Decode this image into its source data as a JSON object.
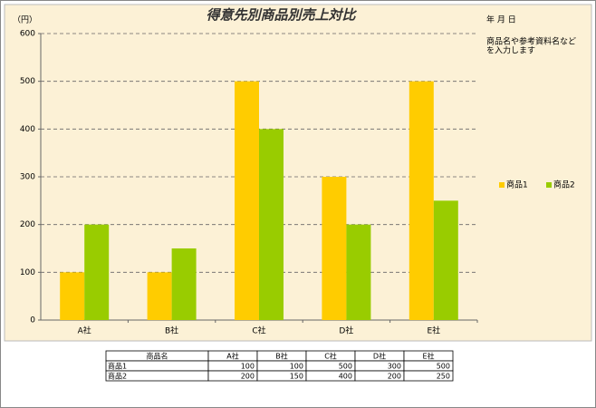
{
  "chart_data": {
    "type": "bar",
    "title": "得意先別商品別売上対比",
    "y_unit_label": "（円）",
    "date_label": "年 月 日",
    "annotation": [
      "商品名や参考資料名など",
      "を入力します"
    ],
    "categories": [
      "A社",
      "B社",
      "C社",
      "D社",
      "E社"
    ],
    "series": [
      {
        "name": "商品1",
        "color": "#FFCC00",
        "values": [
          100,
          100,
          500,
          300,
          500
        ]
      },
      {
        "name": "商品2",
        "color": "#99CC00",
        "values": [
          200,
          150,
          400,
          200,
          250
        ]
      }
    ],
    "ylim": [
      0,
      600
    ],
    "yticks": [
      0,
      100,
      200,
      300,
      400,
      500,
      600
    ],
    "grid": true,
    "legend": "right"
  },
  "table": {
    "header": "商品名"
  }
}
